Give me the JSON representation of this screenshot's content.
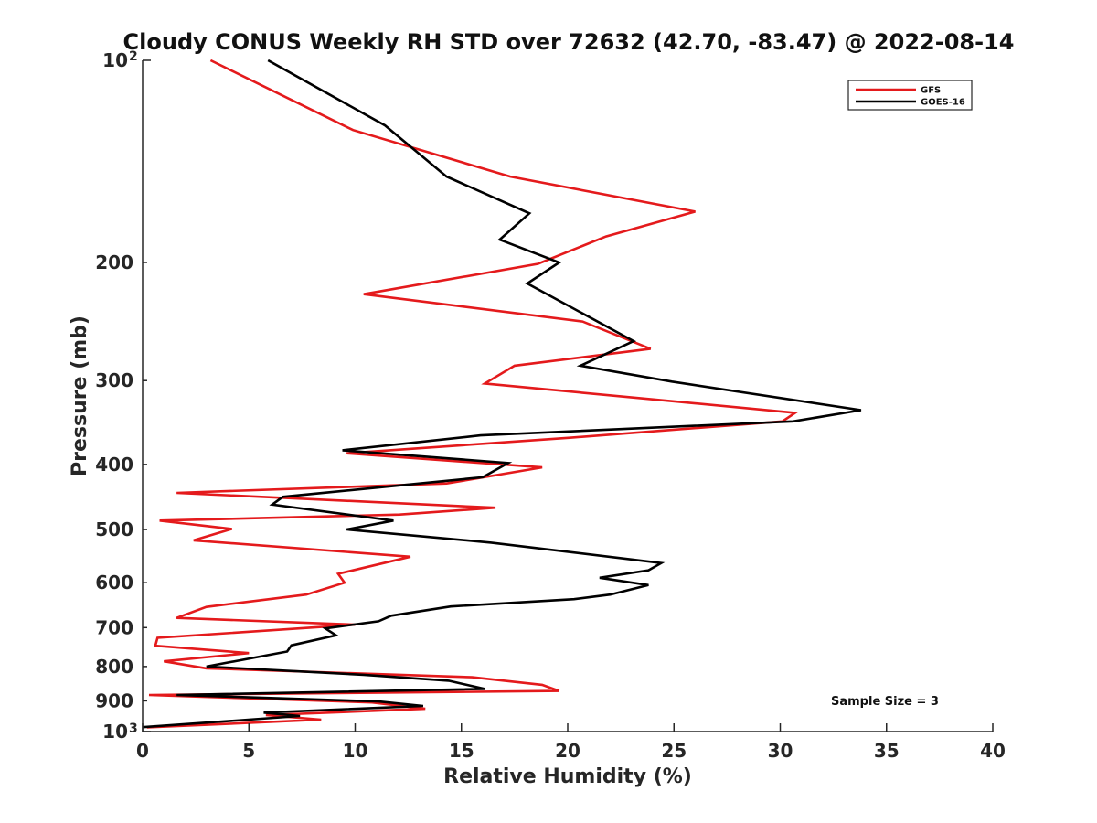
{
  "chart_data": {
    "type": "line",
    "title": "Cloudy CONUS Weekly RH STD over 72632 (42.70, -83.47) @ 2022-08-14",
    "xlabel": "Relative Humidity (%)",
    "ylabel": "Pressure (mb)",
    "xlim": [
      0,
      40
    ],
    "ylim": [
      1000,
      100
    ],
    "yscale": "log",
    "y_inverted": true,
    "xticks": [
      0,
      5,
      10,
      15,
      20,
      25,
      30,
      35,
      40
    ],
    "xtick_labels": [
      "0",
      "5",
      "10",
      "15",
      "20",
      "25",
      "30",
      "35",
      "40"
    ],
    "yticks": [
      100,
      200,
      300,
      400,
      500,
      600,
      700,
      800,
      900,
      1000
    ],
    "ytick_labels": [
      {
        "base": "10",
        "exp": "2"
      },
      {
        "base": "200",
        "exp": ""
      },
      {
        "base": "300",
        "exp": ""
      },
      {
        "base": "400",
        "exp": ""
      },
      {
        "base": "500",
        "exp": ""
      },
      {
        "base": "600",
        "exp": ""
      },
      {
        "base": "700",
        "exp": ""
      },
      {
        "base": "800",
        "exp": ""
      },
      {
        "base": "900",
        "exp": ""
      },
      {
        "base": "10",
        "exp": "3"
      }
    ],
    "grid": false,
    "legend_position": "top-right",
    "annotation": "Sample Size = 3",
    "series": [
      {
        "name": "GFS",
        "color": "#e41a1c",
        "points": [
          [
            3.2,
            100
          ],
          [
            9.9,
            127
          ],
          [
            17.3,
            149
          ],
          [
            26.0,
            168
          ],
          [
            21.8,
            183
          ],
          [
            18.6,
            201
          ],
          [
            10.4,
            223
          ],
          [
            20.7,
            245
          ],
          [
            23.9,
            269
          ],
          [
            17.5,
            285
          ],
          [
            16.1,
            303
          ],
          [
            30.7,
            335
          ],
          [
            30.1,
            345
          ],
          [
            20.1,
            365
          ],
          [
            9.6,
            385
          ],
          [
            18.8,
            404
          ],
          [
            14.3,
            427
          ],
          [
            1.6,
            441
          ],
          [
            16.6,
            464
          ],
          [
            12.1,
            475
          ],
          [
            0.8,
            485
          ],
          [
            4.2,
            499
          ],
          [
            2.4,
            519
          ],
          [
            12.6,
            549
          ],
          [
            9.2,
            582
          ],
          [
            9.5,
            600
          ],
          [
            7.7,
            625
          ],
          [
            3.0,
            652
          ],
          [
            1.6,
            677
          ],
          [
            10.0,
            693
          ],
          [
            0.7,
            725
          ],
          [
            0.6,
            745
          ],
          [
            5.0,
            764
          ],
          [
            1.0,
            786
          ],
          [
            3.0,
            805
          ],
          [
            15.5,
            830
          ],
          [
            18.8,
            852
          ],
          [
            19.6,
            870
          ],
          [
            0.3,
            882
          ],
          [
            10.8,
            905
          ],
          [
            13.3,
            925
          ],
          [
            5.8,
            945
          ],
          [
            8.4,
            960
          ],
          [
            0.2,
            986
          ]
        ]
      },
      {
        "name": "GOES-16",
        "color": "#000000",
        "points": [
          [
            5.9,
            100
          ],
          [
            11.4,
            125
          ],
          [
            14.3,
            149
          ],
          [
            18.2,
            169
          ],
          [
            16.8,
            185
          ],
          [
            19.6,
            200
          ],
          [
            18.1,
            215
          ],
          [
            23.1,
            262
          ],
          [
            20.6,
            285
          ],
          [
            24.9,
            301
          ],
          [
            33.8,
            332
          ],
          [
            30.6,
            345
          ],
          [
            15.9,
            362
          ],
          [
            9.4,
            381
          ],
          [
            17.2,
            398
          ],
          [
            16.0,
            418
          ],
          [
            6.6,
            447
          ],
          [
            6.1,
            459
          ],
          [
            11.8,
            485
          ],
          [
            9.6,
            500
          ],
          [
            16.4,
            523
          ],
          [
            24.4,
            561
          ],
          [
            23.8,
            575
          ],
          [
            21.5,
            590
          ],
          [
            23.8,
            605
          ],
          [
            22.0,
            625
          ],
          [
            20.3,
            635
          ],
          [
            14.5,
            651
          ],
          [
            11.7,
            672
          ],
          [
            11.1,
            685
          ],
          [
            8.6,
            702
          ],
          [
            9.1,
            719
          ],
          [
            7.0,
            744
          ],
          [
            6.8,
            760
          ],
          [
            3.0,
            800
          ],
          [
            10.4,
            823
          ],
          [
            14.4,
            840
          ],
          [
            16.1,
            864
          ],
          [
            1.6,
            882
          ],
          [
            11.1,
            902
          ],
          [
            13.2,
            916
          ],
          [
            5.7,
            937
          ],
          [
            7.4,
            948
          ],
          [
            0.0,
            985
          ]
        ]
      }
    ]
  }
}
